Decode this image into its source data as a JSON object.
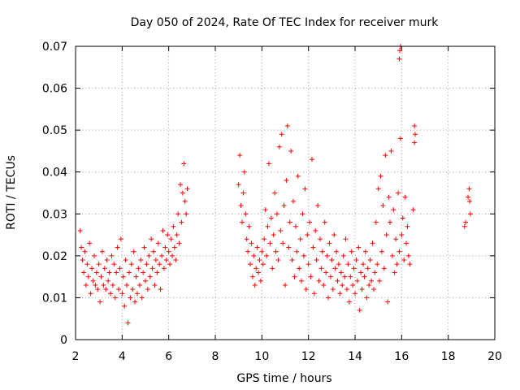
{
  "chart_data": {
    "type": "scatter",
    "title": "Day 050 of 2024, Rate Of TEC Index for receiver murk",
    "xlabel": "GPS time / hours",
    "ylabel": "ROTI / TECUs",
    "xlim": [
      2,
      20
    ],
    "ylim": [
      0,
      0.07
    ],
    "xticks": [
      "2",
      "4",
      "6",
      "8",
      "10",
      "12",
      "14",
      "16",
      "18",
      "20"
    ],
    "yticks": [
      "0",
      "0.01",
      "0.02",
      "0.03",
      "0.04",
      "0.05",
      "0.06",
      "0.07"
    ],
    "xtick_values": [
      2,
      4,
      6,
      8,
      10,
      12,
      14,
      16,
      18,
      20
    ],
    "ytick_values": [
      0,
      0.01,
      0.02,
      0.03,
      0.04,
      0.05,
      0.06,
      0.07
    ],
    "grid": true,
    "marker": "+",
    "color": "#ff0000",
    "series": [
      {
        "points": [
          [
            2.2,
            0.026
          ],
          [
            2.25,
            0.022
          ],
          [
            2.3,
            0.019
          ],
          [
            2.35,
            0.016
          ],
          [
            2.4,
            0.021
          ],
          [
            2.45,
            0.013
          ],
          [
            2.5,
            0.018
          ],
          [
            2.55,
            0.015
          ],
          [
            2.6,
            0.023
          ],
          [
            2.65,
            0.011
          ],
          [
            2.7,
            0.017
          ],
          [
            2.75,
            0.014
          ],
          [
            2.8,
            0.02
          ],
          [
            2.85,
            0.013
          ],
          [
            2.9,
            0.016
          ],
          [
            2.95,
            0.012
          ],
          [
            3.0,
            0.018
          ],
          [
            3.05,
            0.009
          ],
          [
            3.1,
            0.015
          ],
          [
            3.15,
            0.021
          ],
          [
            3.2,
            0.013
          ],
          [
            3.25,
            0.017
          ],
          [
            3.3,
            0.012
          ],
          [
            3.35,
            0.019
          ],
          [
            3.4,
            0.014
          ],
          [
            3.45,
            0.016
          ],
          [
            3.5,
            0.011
          ],
          [
            3.55,
            0.02
          ],
          [
            3.6,
            0.013
          ],
          [
            3.65,
            0.018
          ],
          [
            3.7,
            0.01
          ],
          [
            3.75,
            0.016
          ],
          [
            3.8,
            0.022
          ],
          [
            3.85,
            0.012
          ],
          [
            3.9,
            0.017
          ],
          [
            3.95,
            0.024
          ],
          [
            4.0,
            0.011
          ],
          [
            4.05,
            0.015
          ],
          [
            4.1,
            0.008
          ],
          [
            4.15,
            0.019
          ],
          [
            4.2,
            0.013
          ],
          [
            4.25,
            0.004
          ],
          [
            4.3,
            0.016
          ],
          [
            4.35,
            0.01
          ],
          [
            4.4,
            0.018
          ],
          [
            4.45,
            0.012
          ],
          [
            4.5,
            0.021
          ],
          [
            4.55,
            0.009
          ],
          [
            4.6,
            0.015
          ],
          [
            4.65,
            0.011
          ],
          [
            4.7,
            0.017
          ],
          [
            4.75,
            0.013
          ],
          [
            4.8,
            0.019
          ],
          [
            4.85,
            0.01
          ],
          [
            4.9,
            0.016
          ],
          [
            4.95,
            0.022
          ],
          [
            5.0,
            0.014
          ],
          [
            5.05,
            0.018
          ],
          [
            5.1,
            0.012
          ],
          [
            5.15,
            0.02
          ],
          [
            5.2,
            0.015
          ],
          [
            5.25,
            0.024
          ],
          [
            5.3,
            0.017
          ],
          [
            5.35,
            0.021
          ],
          [
            5.4,
            0.013
          ],
          [
            5.45,
            0.019
          ],
          [
            5.5,
            0.016
          ],
          [
            5.55,
            0.023
          ],
          [
            5.6,
            0.018
          ],
          [
            5.65,
            0.012
          ],
          [
            5.7,
            0.02
          ],
          [
            5.75,
            0.026
          ],
          [
            5.8,
            0.017
          ],
          [
            5.85,
            0.022
          ],
          [
            5.9,
            0.019
          ],
          [
            5.95,
            0.025
          ],
          [
            6.0,
            0.021
          ],
          [
            6.05,
            0.018
          ],
          [
            6.1,
            0.024
          ],
          [
            6.15,
            0.02
          ],
          [
            6.2,
            0.027
          ],
          [
            6.25,
            0.022
          ],
          [
            6.3,
            0.019
          ],
          [
            6.35,
            0.025
          ],
          [
            6.4,
            0.03
          ],
          [
            6.45,
            0.023
          ],
          [
            6.5,
            0.037
          ],
          [
            6.55,
            0.028
          ],
          [
            6.6,
            0.035
          ],
          [
            6.65,
            0.042
          ],
          [
            6.7,
            0.033
          ],
          [
            6.75,
            0.03
          ],
          [
            6.8,
            0.036
          ],
          [
            9.0,
            0.037
          ],
          [
            9.05,
            0.044
          ],
          [
            9.1,
            0.032
          ],
          [
            9.15,
            0.028
          ],
          [
            9.2,
            0.035
          ],
          [
            9.25,
            0.04
          ],
          [
            9.3,
            0.03
          ],
          [
            9.35,
            0.024
          ],
          [
            9.4,
            0.021
          ],
          [
            9.45,
            0.027
          ],
          [
            9.5,
            0.018
          ],
          [
            9.55,
            0.023
          ],
          [
            9.6,
            0.015
          ],
          [
            9.65,
            0.02
          ],
          [
            9.7,
            0.013
          ],
          [
            9.75,
            0.017
          ],
          [
            9.8,
            0.022
          ],
          [
            9.85,
            0.016
          ],
          [
            9.9,
            0.019
          ],
          [
            9.95,
            0.014
          ],
          [
            10.0,
            0.021
          ],
          [
            10.05,
            0.018
          ],
          [
            10.1,
            0.024
          ],
          [
            10.15,
            0.031
          ],
          [
            10.2,
            0.02
          ],
          [
            10.25,
            0.027
          ],
          [
            10.3,
            0.042
          ],
          [
            10.35,
            0.023
          ],
          [
            10.4,
            0.029
          ],
          [
            10.45,
            0.017
          ],
          [
            10.5,
            0.025
          ],
          [
            10.55,
            0.035
          ],
          [
            10.6,
            0.021
          ],
          [
            10.65,
            0.03
          ],
          [
            10.7,
            0.019
          ],
          [
            10.75,
            0.046
          ],
          [
            10.8,
            0.026
          ],
          [
            10.85,
            0.049
          ],
          [
            10.9,
            0.023
          ],
          [
            10.95,
            0.032
          ],
          [
            11.0,
            0.013
          ],
          [
            11.05,
            0.038
          ],
          [
            11.1,
            0.051
          ],
          [
            11.15,
            0.022
          ],
          [
            11.2,
            0.028
          ],
          [
            11.25,
            0.045
          ],
          [
            11.3,
            0.019
          ],
          [
            11.35,
            0.033
          ],
          [
            11.4,
            0.015
          ],
          [
            11.45,
            0.027
          ],
          [
            11.5,
            0.021
          ],
          [
            11.55,
            0.039
          ],
          [
            11.6,
            0.017
          ],
          [
            11.65,
            0.024
          ],
          [
            11.7,
            0.014
          ],
          [
            11.75,
            0.03
          ],
          [
            11.8,
            0.02
          ],
          [
            11.85,
            0.036
          ],
          [
            11.9,
            0.012
          ],
          [
            11.95,
            0.025
          ],
          [
            12.0,
            0.018
          ],
          [
            12.05,
            0.028
          ],
          [
            12.1,
            0.015
          ],
          [
            12.15,
            0.043
          ],
          [
            12.2,
            0.022
          ],
          [
            12.25,
            0.011
          ],
          [
            12.3,
            0.026
          ],
          [
            12.35,
            0.019
          ],
          [
            12.4,
            0.032
          ],
          [
            12.45,
            0.014
          ],
          [
            12.5,
            0.024
          ],
          [
            12.55,
            0.017
          ],
          [
            12.6,
            0.021
          ],
          [
            12.65,
            0.013
          ],
          [
            12.7,
            0.028
          ],
          [
            12.75,
            0.016
          ],
          [
            12.8,
            0.02
          ],
          [
            12.85,
            0.01
          ],
          [
            12.9,
            0.023
          ],
          [
            12.95,
            0.015
          ],
          [
            13.0,
            0.019
          ],
          [
            13.05,
            0.012
          ],
          [
            13.1,
            0.025
          ],
          [
            13.15,
            0.017
          ],
          [
            13.2,
            0.021
          ],
          [
            13.25,
            0.014
          ],
          [
            13.3,
            0.018
          ],
          [
            13.35,
            0.011
          ],
          [
            13.4,
            0.016
          ],
          [
            13.45,
            0.013
          ],
          [
            13.5,
            0.02
          ],
          [
            13.55,
            0.015
          ],
          [
            13.6,
            0.024
          ],
          [
            13.65,
            0.012
          ],
          [
            13.7,
            0.018
          ],
          [
            13.75,
            0.009
          ],
          [
            13.8,
            0.015
          ],
          [
            13.85,
            0.021
          ],
          [
            13.9,
            0.013
          ],
          [
            13.95,
            0.017
          ],
          [
            14.0,
            0.011
          ],
          [
            14.05,
            0.019
          ],
          [
            14.1,
            0.014
          ],
          [
            14.15,
            0.022
          ],
          [
            14.2,
            0.007
          ],
          [
            14.25,
            0.016
          ],
          [
            14.3,
            0.012
          ],
          [
            14.35,
            0.018
          ],
          [
            14.4,
            0.015
          ],
          [
            14.45,
            0.021
          ],
          [
            14.5,
            0.01
          ],
          [
            14.55,
            0.017
          ],
          [
            14.6,
            0.013
          ],
          [
            14.65,
            0.019
          ],
          [
            14.7,
            0.014
          ],
          [
            14.75,
            0.023
          ],
          [
            14.8,
            0.012
          ],
          [
            14.85,
            0.016
          ],
          [
            14.9,
            0.028
          ],
          [
            14.95,
            0.018
          ],
          [
            15.0,
            0.036
          ],
          [
            15.05,
            0.014
          ],
          [
            15.1,
            0.039
          ],
          [
            15.15,
            0.021
          ],
          [
            15.2,
            0.032
          ],
          [
            15.25,
            0.017
          ],
          [
            15.3,
            0.044
          ],
          [
            15.35,
            0.025
          ],
          [
            15.4,
            0.009
          ],
          [
            15.45,
            0.034
          ],
          [
            15.5,
            0.028
          ],
          [
            15.55,
            0.045
          ],
          [
            15.6,
            0.02
          ],
          [
            15.65,
            0.031
          ],
          [
            15.7,
            0.016
          ],
          [
            15.75,
            0.024
          ],
          [
            15.8,
            0.018
          ],
          [
            15.85,
            0.035
          ],
          [
            15.9,
            0.021
          ],
          [
            15.95,
            0.048
          ],
          [
            15.9,
            0.067
          ],
          [
            15.92,
            0.069
          ],
          [
            15.95,
            0.07
          ],
          [
            16.0,
            0.025
          ],
          [
            16.05,
            0.029
          ],
          [
            16.1,
            0.019
          ],
          [
            16.15,
            0.034
          ],
          [
            16.2,
            0.023
          ],
          [
            16.25,
            0.027
          ],
          [
            16.3,
            0.02
          ],
          [
            16.35,
            0.018
          ],
          [
            16.5,
            0.031
          ],
          [
            16.55,
            0.047
          ],
          [
            16.55,
            0.051
          ],
          [
            16.58,
            0.049
          ],
          [
            18.7,
            0.027
          ],
          [
            18.75,
            0.028
          ],
          [
            18.85,
            0.034
          ],
          [
            18.9,
            0.036
          ],
          [
            18.92,
            0.033
          ],
          [
            18.95,
            0.03
          ]
        ]
      }
    ]
  }
}
